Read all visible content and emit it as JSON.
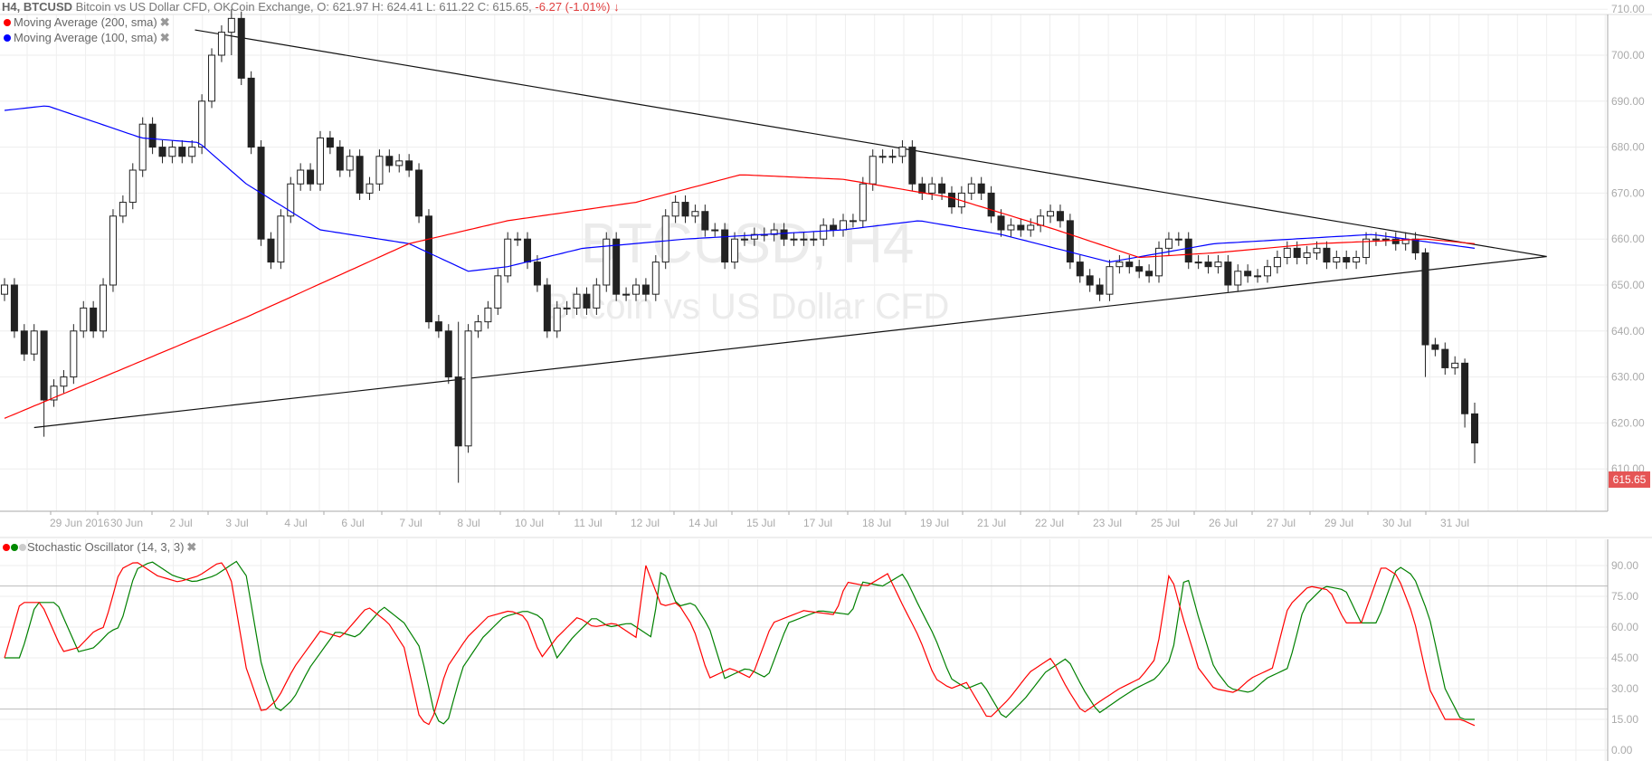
{
  "header": {
    "timeframe_symbol": "H4, BTCUSD",
    "description": "Bitcoin vs US Dollar CFD, OKCoin Exchange,",
    "ohlc": "O: 621.97 H: 624.41 L: 611.22 C: 615.65,",
    "change": "-6.27 (-1.01%) ↓"
  },
  "legend": {
    "ma200": "Moving Average (200, sma)",
    "ma100": "Moving Average (100, sma)",
    "stoch": "Stochastic Oscillator (14, 3, 3)",
    "close_glyph": "✖"
  },
  "watermark": {
    "title": "BTCUSD, H4",
    "subtitle": "Bitcoin vs US Dollar CFD"
  },
  "last_price_label": "615.65",
  "colors": {
    "ma200": "#ff0000",
    "ma100": "#0000ff",
    "stoch_k": "#ff0000",
    "stoch_d": "#008000",
    "last_price": "#e55555",
    "candle": "#222222"
  },
  "chart_data": [
    {
      "type": "candlestick",
      "title": "BTCUSD, H4",
      "ylim": [
        605,
        710
      ],
      "yticks": [
        "710.00",
        "700.00",
        "690.00",
        "680.00",
        "670.00",
        "660.00",
        "650.00",
        "640.00",
        "630.00",
        "620.00",
        "610.00"
      ],
      "xticks": [
        "29 Jun 2016",
        "30 Jun",
        "2 Jul",
        "3 Jul",
        "4 Jul",
        "6 Jul",
        "7 Jul",
        "8 Jul",
        "10 Jul",
        "11 Jul",
        "12 Jul",
        "14 Jul",
        "15 Jul",
        "17 Jul",
        "18 Jul",
        "19 Jul",
        "21 Jul",
        "22 Jul",
        "23 Jul",
        "25 Jul",
        "26 Jul",
        "27 Jul",
        "29 Jul",
        "30 Jul",
        "31 Jul"
      ],
      "first_open": 648,
      "closes": [
        650,
        640,
        635,
        640,
        625,
        628,
        630,
        640,
        645,
        640,
        650,
        665,
        668,
        675,
        685,
        680,
        678,
        680,
        678,
        680,
        690,
        700,
        705,
        708,
        695,
        680,
        660,
        655,
        665,
        672,
        675,
        672,
        682,
        680,
        675,
        678,
        670,
        672,
        678,
        676,
        677,
        675,
        665,
        642,
        640,
        630,
        615,
        640,
        642,
        645,
        652,
        660,
        660,
        655,
        650,
        640,
        645,
        645,
        648,
        645,
        650,
        660,
        648,
        648,
        650,
        648,
        655,
        665,
        668,
        665,
        666,
        662,
        662,
        655,
        660,
        660,
        661,
        661,
        662,
        660,
        660,
        660,
        660,
        663,
        662,
        664,
        664,
        672,
        678,
        678,
        678,
        680,
        672,
        670,
        672,
        670,
        667,
        670,
        672,
        670,
        665,
        662,
        663,
        662,
        663,
        665,
        666,
        664,
        655,
        652,
        650,
        648,
        654,
        655,
        654,
        653,
        652,
        658,
        660,
        660,
        655,
        655,
        654,
        655,
        650,
        653,
        652,
        652,
        654,
        656,
        658,
        656,
        657,
        658,
        655,
        656,
        655,
        656,
        660,
        660,
        660,
        659,
        660,
        657,
        637,
        636,
        632,
        633,
        622,
        615.65
      ],
      "high_low_overrides": {
        "4": [
          630,
          617
        ],
        "23": [
          710,
          700
        ],
        "46": [
          642,
          607
        ],
        "144": [
          658,
          630
        ],
        "148": [
          634,
          619
        ],
        "149": [
          624.41,
          611.22
        ]
      },
      "last_open": 621.97,
      "ma200": [
        [
          0,
          621
        ],
        [
          24.5,
          643
        ],
        [
          41,
          659
        ],
        [
          51,
          664
        ],
        [
          64,
          668
        ],
        [
          74.6,
          674
        ],
        [
          85,
          673
        ],
        [
          96,
          669
        ],
        [
          106.6,
          662
        ],
        [
          115,
          656
        ],
        [
          122.6,
          657
        ],
        [
          133,
          659
        ],
        [
          144,
          660
        ],
        [
          149,
          659
        ]
      ],
      "ma100": [
        [
          0,
          688
        ],
        [
          4.3,
          689
        ],
        [
          13.9,
          682
        ],
        [
          19.7,
          681
        ],
        [
          24.5,
          672
        ],
        [
          32,
          662
        ],
        [
          41,
          659
        ],
        [
          47,
          653
        ],
        [
          51,
          654
        ],
        [
          58.6,
          658
        ],
        [
          69,
          660
        ],
        [
          85,
          662
        ],
        [
          92.7,
          664
        ],
        [
          101,
          661
        ],
        [
          112,
          655
        ],
        [
          122.6,
          659
        ],
        [
          138.6,
          661
        ],
        [
          149,
          658
        ]
      ],
      "trendlines": [
        {
          "name": "upper",
          "points": [
            [
              19.3,
              705.5
            ],
            [
              156.3,
              656.2
            ]
          ]
        },
        {
          "name": "lower",
          "points": [
            [
              3,
              619
            ],
            [
              156.3,
              656.2
            ]
          ]
        }
      ]
    },
    {
      "type": "line",
      "title": "Stochastic Oscillator (14, 3, 3)",
      "ylim": [
        0,
        100
      ],
      "yticks": [
        "90.00",
        "75.00",
        "60.00",
        "45.00",
        "30.00",
        "15.00",
        "0.00"
      ],
      "levels": [
        80,
        20
      ],
      "k": [
        [
          0,
          45
        ],
        [
          1.6,
          72
        ],
        [
          3.7,
          72
        ],
        [
          5.9,
          48
        ],
        [
          7.5,
          50
        ],
        [
          9.1,
          58
        ],
        [
          10.1,
          60
        ],
        [
          11.7,
          88
        ],
        [
          13.3,
          92
        ],
        [
          15.5,
          85
        ],
        [
          17.6,
          82
        ],
        [
          19.7,
          85
        ],
        [
          21.9,
          92
        ],
        [
          22.9,
          85
        ],
        [
          24.5,
          40
        ],
        [
          26.1,
          18
        ],
        [
          27.7,
          25
        ],
        [
          29.3,
          40
        ],
        [
          32,
          58
        ],
        [
          34.1,
          55
        ],
        [
          36.8,
          70
        ],
        [
          38.9,
          62
        ],
        [
          40.5,
          50
        ],
        [
          42.1,
          15
        ],
        [
          43.2,
          12
        ],
        [
          44.8,
          40
        ],
        [
          46.9,
          55
        ],
        [
          49,
          65
        ],
        [
          51.2,
          68
        ],
        [
          52.8,
          65
        ],
        [
          54.4,
          45
        ],
        [
          56,
          55
        ],
        [
          58.1,
          65
        ],
        [
          59.7,
          60
        ],
        [
          61.8,
          62
        ],
        [
          64,
          55
        ],
        [
          65,
          90
        ],
        [
          66.6,
          70
        ],
        [
          68.2,
          72
        ],
        [
          69.8,
          60
        ],
        [
          71.4,
          35
        ],
        [
          73.6,
          40
        ],
        [
          75.7,
          35
        ],
        [
          77.8,
          62
        ],
        [
          81,
          68
        ],
        [
          84.2,
          66
        ],
        [
          85.3,
          82
        ],
        [
          87.4,
          80
        ],
        [
          89.5,
          86
        ],
        [
          91.1,
          70
        ],
        [
          92.7,
          55
        ],
        [
          94.3,
          35
        ],
        [
          95.9,
          30
        ],
        [
          97.5,
          33
        ],
        [
          99.7,
          15
        ],
        [
          101.8,
          25
        ],
        [
          103.9,
          38
        ],
        [
          106.1,
          45
        ],
        [
          107.7,
          30
        ],
        [
          109.3,
          18
        ],
        [
          111.4,
          25
        ],
        [
          113,
          30
        ],
        [
          115.1,
          35
        ],
        [
          116.7,
          45
        ],
        [
          118.1,
          88
        ],
        [
          119.4,
          65
        ],
        [
          121,
          40
        ],
        [
          122.6,
          30
        ],
        [
          124.7,
          28
        ],
        [
          126.3,
          35
        ],
        [
          128.5,
          40
        ],
        [
          130.1,
          70
        ],
        [
          132.2,
          80
        ],
        [
          134.3,
          78
        ],
        [
          135.9,
          62
        ],
        [
          137.5,
          62
        ],
        [
          139.6,
          90
        ],
        [
          141.2,
          85
        ],
        [
          142.8,
          65
        ],
        [
          144.4,
          30
        ],
        [
          146,
          15
        ],
        [
          147.6,
          15
        ],
        [
          149,
          12
        ]
      ],
      "d_lag_candles": 1.6
    }
  ]
}
